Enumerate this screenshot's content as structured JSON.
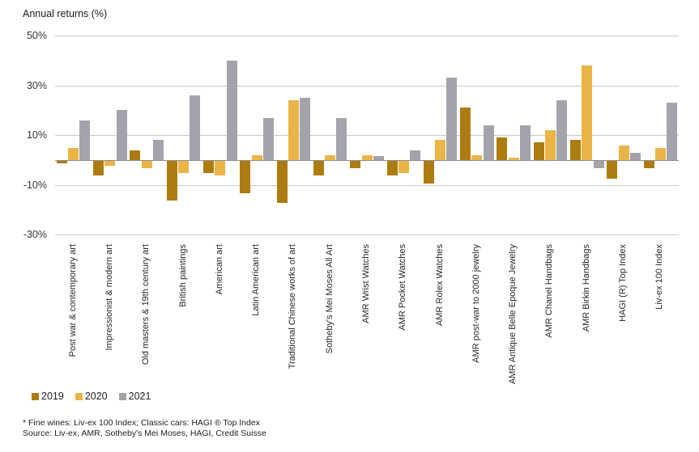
{
  "title": "Annual returns (%)",
  "chart_data": {
    "type": "bar",
    "title": "Annual returns (%)",
    "categories": [
      "Post war & contemporary art",
      "Impressionist & modern art",
      "Old masters & 19th century art",
      "British paintings",
      "American art",
      "Latin American art",
      "Traditional Chinese works of art",
      "Sotheby's Mei Moses All Art",
      "AMR Wrist Watches",
      "AMR Pocket Watches",
      "AMR Rolex Watches",
      "AMR post-war to 2000 jewelry",
      "AMR Antique Belle Epoque Jewelry",
      "AMR Chanel Handbags",
      "AMR Birkin Handbags",
      "HAGI (R) Top Index",
      "Liv-ex 100 Index"
    ],
    "series": [
      {
        "name": "2019",
        "color": "#ad7c11",
        "values": [
          -1,
          -6,
          4,
          -16,
          -5,
          -13,
          -17,
          -6,
          -3,
          -6,
          -9,
          21,
          9,
          7,
          8,
          -7,
          -3
        ]
      },
      {
        "name": "2020",
        "color": "#eab447",
        "values": [
          5,
          -2,
          -3,
          -5,
          -6,
          2,
          24,
          2,
          2,
          -5,
          8,
          2,
          1,
          12,
          38,
          6,
          5
        ]
      },
      {
        "name": "2021",
        "color": "#a3a4ab",
        "values": [
          16,
          20,
          8,
          26,
          40,
          17,
          25,
          17,
          1.5,
          4,
          33,
          14,
          14,
          24,
          -3,
          3,
          23
        ]
      }
    ],
    "y_ticks": [
      50,
      30,
      10,
      -10,
      -30
    ],
    "y_tick_labels": [
      "50%",
      "30%",
      "10%",
      "-10%",
      "-30%"
    ],
    "ylim": [
      -33,
      55
    ],
    "grid": true,
    "legend_position": "bottom",
    "xlabel": "",
    "ylabel": "Annual returns (%)"
  },
  "legend": {
    "items": [
      "2019",
      "2020",
      "2021"
    ]
  },
  "footnote": {
    "line1": "* Fine wines: Liv-ex 100 Index; Classic cars: HAGI ® Top Index",
    "line2": "Source: Liv-ex, AMR, Sotheby's Mei Moses, HAGI, Credit Suisse"
  },
  "colors": {
    "series_2019": "#ad7c11",
    "series_2020": "#eab447",
    "series_2021": "#a3a4ab",
    "gridline": "#c9c9c9",
    "zero_line": "#8e8e8e"
  }
}
